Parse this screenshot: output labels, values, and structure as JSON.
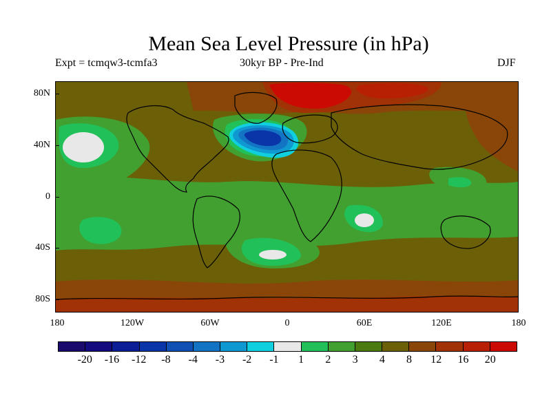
{
  "title": "Mean Sea Level Pressure (in hPa)",
  "subtitle_left": "Expt = tcmqw3-tcmfa3",
  "subtitle_center": "30kyr BP - Pre-Ind",
  "season": "DJF",
  "y_axis_labels": [
    "80N",
    "40N",
    "0",
    "40S",
    "80S"
  ],
  "x_axis_labels": [
    "180",
    "120W",
    "60W",
    "0",
    "60E",
    "120E",
    "180"
  ],
  "colorbar": {
    "labels": [
      "-20",
      "-16",
      "-12",
      "-8",
      "-4",
      "-3",
      "-2",
      "-1",
      "1",
      "2",
      "3",
      "4",
      "8",
      "12",
      "16",
      "20"
    ],
    "colors": [
      "#1a0a6e",
      "#140a80",
      "#0c1e96",
      "#0a35a8",
      "#1050b4",
      "#1474c4",
      "#1098d0",
      "#10d0e0",
      "#e8e8e8",
      "#22c058",
      "#42a030",
      "#4a7a10",
      "#6b5f08",
      "#8a4608",
      "#a03206",
      "#b82004",
      "#cc0a04"
    ]
  },
  "map": {
    "background_color": "#6b5f08"
  }
}
